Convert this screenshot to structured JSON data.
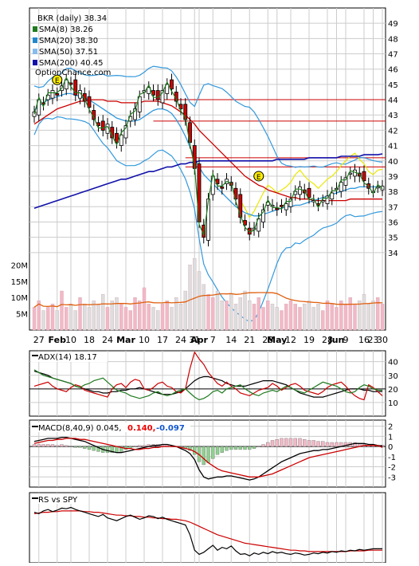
{
  "chart_data": [
    {
      "type": "line",
      "panel": "price",
      "title": "BKR (daily) 38.34",
      "watermark": "OptionChance.com",
      "legend_placement": "top-left",
      "legend": [
        {
          "label": "SMA(8) 38.26",
          "color": "#1f7a1f"
        },
        {
          "label": "SMA(20) 38.30",
          "color": "#2288cc"
        },
        {
          "label": "SMA(50) 37.51",
          "color": "#88bbee"
        },
        {
          "label": "SMA(200) 40.45",
          "color": "#1111aa"
        }
      ],
      "ylim": [
        33,
        50
      ],
      "y_ticks": [
        34,
        35,
        36,
        37,
        38,
        39,
        40,
        41,
        42,
        43,
        44,
        45,
        46,
        47,
        48,
        49
      ],
      "grid": true,
      "earnings_markers": [
        "E",
        "E"
      ],
      "candles_close": [
        43.2,
        44.0,
        43.7,
        44.3,
        44.6,
        44.3,
        44.9,
        45.3,
        45.0,
        44.3,
        44.6,
        43.9,
        43.5,
        42.7,
        42.3,
        42.0,
        42.4,
        41.5,
        41.2,
        41.7,
        42.3,
        42.9,
        43.4,
        44.2,
        44.6,
        44.8,
        44.3,
        44.0,
        44.6,
        45.0,
        44.7,
        43.9,
        43.4,
        42.7,
        41.2,
        39.5,
        36.0,
        35.0,
        37.5,
        39.0,
        38.5,
        38.2,
        38.8,
        38.4,
        37.5,
        36.3,
        35.8,
        35.2,
        35.6,
        36.2,
        36.8,
        37.3,
        37.1,
        36.8,
        37.0,
        37.2,
        37.5,
        38.0,
        38.3,
        37.9,
        37.6,
        37.4,
        37.1,
        37.4,
        37.7,
        37.9,
        38.2,
        38.6,
        38.9,
        39.2,
        39.4,
        39.0,
        38.7,
        38.2,
        38.0,
        38.3,
        38.34
      ],
      "sma20": [
        43.3,
        43.6,
        43.8,
        44.0,
        44.1,
        44.2,
        44.3,
        44.4,
        44.4,
        44.3,
        44.2,
        44.1,
        44.0,
        43.8,
        43.6,
        43.4,
        43.2,
        43.0,
        42.8,
        42.7,
        42.6,
        42.6,
        42.6,
        42.7,
        42.9,
        43.1,
        43.3,
        43.4,
        43.4,
        43.3,
        43.1,
        42.7,
        42.2,
        41.6,
        40.9,
        40.2,
        39.6,
        39.1,
        38.8,
        38.5,
        38.2,
        37.9,
        37.6,
        37.3,
        37.0,
        36.8,
        36.6,
        36.5,
        36.4,
        36.4,
        36.5,
        36.6,
        36.7,
        36.8,
        36.9,
        37.0,
        37.0,
        37.1,
        37.1,
        37.2,
        37.3,
        37.4,
        37.5,
        37.6,
        37.7,
        37.8,
        37.9,
        38.0,
        38.1,
        38.2,
        38.2,
        38.3,
        38.3,
        38.3,
        38.3,
        38.3,
        38.3
      ],
      "sma50": [
        42.4,
        42.6,
        42.8,
        43.0,
        43.2,
        43.4,
        43.5,
        43.6,
        43.7,
        43.8,
        43.9,
        43.9,
        44.0,
        44.0,
        44.0,
        44.0,
        43.9,
        43.9,
        43.9,
        43.8,
        43.8,
        43.8,
        43.8,
        43.8,
        43.9,
        43.9,
        43.9,
        43.9,
        43.8,
        43.7,
        43.6,
        43.4,
        43.2,
        43.0,
        42.7,
        42.4,
        42.0,
        41.7,
        41.4,
        41.1,
        40.8,
        40.5,
        40.2,
        39.9,
        39.6,
        39.3,
        39.0,
        38.8,
        38.6,
        38.4,
        38.3,
        38.1,
        38.0,
        37.9,
        37.8,
        37.7,
        37.6,
        37.6,
        37.5,
        37.5,
        37.5,
        37.4,
        37.4,
        37.4,
        37.4,
        37.4,
        37.4,
        37.4,
        37.4,
        37.5,
        37.5,
        37.5,
        37.5,
        37.5,
        37.5,
        37.5,
        37.5
      ],
      "sma200": [
        36.9,
        37.0,
        37.1,
        37.2,
        37.3,
        37.4,
        37.5,
        37.6,
        37.7,
        37.8,
        37.9,
        38.0,
        38.1,
        38.2,
        38.3,
        38.4,
        38.5,
        38.6,
        38.7,
        38.8,
        38.8,
        38.9,
        39.0,
        39.1,
        39.2,
        39.3,
        39.3,
        39.4,
        39.5,
        39.6,
        39.6,
        39.7,
        39.8,
        39.8,
        39.9,
        39.9,
        40.0,
        40.0,
        40.0,
        40.0,
        40.0,
        40.0,
        40.0,
        40.0,
        40.0,
        40.0,
        40.0,
        40.0,
        40.0,
        40.0,
        40.0,
        40.0,
        40.0,
        40.1,
        40.1,
        40.1,
        40.1,
        40.1,
        40.1,
        40.1,
        40.2,
        40.2,
        40.2,
        40.2,
        40.2,
        40.2,
        40.2,
        40.3,
        40.3,
        40.3,
        40.3,
        40.3,
        40.4,
        40.4,
        40.4,
        40.4,
        40.45
      ]
    },
    {
      "type": "bar",
      "panel": "volume",
      "y_ticks": [
        "5M",
        "10M",
        "15M",
        "20M"
      ],
      "ylim": [
        0,
        24
      ],
      "values": [
        7,
        9,
        6,
        7,
        8,
        6,
        12,
        7,
        8,
        6,
        10,
        8,
        7,
        9,
        8,
        11,
        7,
        9,
        10,
        8,
        7,
        6,
        10,
        9,
        13,
        8,
        7,
        6,
        8,
        9,
        7,
        10,
        8,
        12,
        20,
        22,
        18,
        14,
        11,
        10,
        12,
        9,
        9,
        11,
        8,
        10,
        12,
        9,
        8,
        10,
        7,
        9,
        8,
        7,
        6,
        8,
        9,
        8,
        7,
        8,
        9,
        7,
        8,
        6,
        9,
        8,
        7,
        9,
        8,
        10,
        8,
        9,
        11,
        8,
        9,
        10,
        8
      ]
    },
    {
      "type": "line",
      "panel": "adx",
      "title": "ADX(14) 18.17",
      "ylim": [
        0,
        48
      ],
      "y_ticks": [
        10,
        20,
        30,
        40
      ],
      "series": [
        {
          "color": "#000000",
          "values": [
            33,
            32,
            31,
            30,
            28,
            27,
            26,
            25,
            24,
            22,
            21,
            20,
            19,
            18,
            18,
            17,
            17,
            18,
            18,
            19,
            19,
            20,
            20,
            21,
            20,
            19,
            18,
            17,
            16,
            16,
            16,
            17,
            18,
            20,
            23,
            26,
            28,
            29,
            29,
            28,
            27,
            26,
            24,
            23,
            22,
            22,
            22,
            23,
            24,
            25,
            26,
            26,
            26,
            25,
            24,
            23,
            21,
            19,
            17,
            16,
            15,
            14,
            14,
            14,
            15,
            16,
            17,
            18,
            19,
            20,
            20,
            20,
            19,
            19,
            18,
            18,
            18.17
          ]
        },
        {
          "color": "#cc0000",
          "values": [
            22,
            23,
            24,
            25,
            22,
            20,
            19,
            18,
            21,
            23,
            22,
            19,
            18,
            17,
            16,
            15,
            14,
            20,
            23,
            24,
            21,
            25,
            27,
            26,
            20,
            19,
            21,
            24,
            25,
            22,
            21,
            18,
            17,
            20,
            35,
            47,
            42,
            38,
            32,
            28,
            24,
            22,
            25,
            22,
            20,
            17,
            16,
            15,
            17,
            19,
            20,
            21,
            24,
            22,
            19,
            21,
            23,
            24,
            22,
            19,
            18,
            17,
            16,
            18,
            21,
            23,
            24,
            25,
            22,
            18,
            15,
            13,
            12,
            23,
            21,
            18,
            15
          ]
        },
        {
          "color": "#1f7a1f",
          "values": [
            34,
            32,
            30,
            29,
            28,
            27,
            26,
            25,
            24,
            22,
            21,
            23,
            24,
            26,
            27,
            28,
            25,
            22,
            19,
            18,
            17,
            15,
            14,
            13,
            14,
            15,
            17,
            18,
            16,
            15,
            16,
            18,
            19,
            20,
            17,
            14,
            12,
            13,
            15,
            18,
            19,
            17,
            20,
            21,
            22,
            23,
            20,
            18,
            16,
            15,
            17,
            18,
            19,
            18,
            20,
            22,
            21,
            19,
            18,
            17,
            19,
            21,
            23,
            25,
            24,
            23,
            22,
            20,
            18,
            17,
            18,
            21,
            23,
            22,
            20,
            19,
            19
          ]
        }
      ]
    },
    {
      "type": "line",
      "panel": "macd",
      "title": "MACD(8,40,9) 0.045,",
      "value_macd": "0.140,",
      "value_signal": "-0.097",
      "ylim": [
        -4,
        2.6
      ],
      "y_ticks": [
        -3,
        -2,
        -1,
        0,
        1,
        2
      ],
      "series": [
        {
          "color": "#000000",
          "values": [
            0.5,
            0.6,
            0.7,
            0.8,
            0.8,
            0.8,
            0.9,
            0.9,
            0.8,
            0.7,
            0.6,
            0.5,
            0.3,
            0.1,
            -0.1,
            -0.3,
            -0.4,
            -0.5,
            -0.6,
            -0.6,
            -0.5,
            -0.4,
            -0.3,
            -0.2,
            -0.1,
            0.0,
            0.1,
            0.1,
            0.2,
            0.2,
            0.1,
            0.0,
            -0.2,
            -0.4,
            -0.7,
            -1.3,
            -2.3,
            -3.0,
            -3.2,
            -3.1,
            -3.0,
            -3.0,
            -2.9,
            -2.9,
            -3.0,
            -3.1,
            -3.2,
            -3.3,
            -3.2,
            -3.0,
            -2.7,
            -2.4,
            -2.1,
            -1.8,
            -1.5,
            -1.3,
            -1.1,
            -0.9,
            -0.7,
            -0.6,
            -0.5,
            -0.4,
            -0.4,
            -0.3,
            -0.3,
            -0.2,
            -0.1,
            0.0,
            0.1,
            0.2,
            0.3,
            0.3,
            0.3,
            0.2,
            0.2,
            0.1,
            0.045
          ]
        },
        {
          "color": "#cc0000",
          "values": [
            0.3,
            0.4,
            0.5,
            0.6,
            0.6,
            0.7,
            0.7,
            0.8,
            0.8,
            0.8,
            0.7,
            0.7,
            0.6,
            0.5,
            0.4,
            0.3,
            0.2,
            0.1,
            0.0,
            -0.1,
            -0.2,
            -0.2,
            -0.3,
            -0.3,
            -0.2,
            -0.2,
            -0.1,
            -0.1,
            0.0,
            0.0,
            0.0,
            0.0,
            -0.1,
            -0.2,
            -0.3,
            -0.5,
            -0.8,
            -1.2,
            -1.6,
            -1.9,
            -2.2,
            -2.4,
            -2.5,
            -2.6,
            -2.7,
            -2.8,
            -2.9,
            -3.0,
            -3.0,
            -3.0,
            -2.9,
            -2.8,
            -2.7,
            -2.5,
            -2.3,
            -2.1,
            -1.9,
            -1.7,
            -1.5,
            -1.3,
            -1.1,
            -1.0,
            -0.9,
            -0.8,
            -0.7,
            -0.6,
            -0.5,
            -0.4,
            -0.3,
            -0.2,
            -0.1,
            0.0,
            0.1,
            0.1,
            0.1,
            0.1,
            -0.097
          ]
        }
      ]
    },
    {
      "type": "line",
      "panel": "rs",
      "title": "RS vs SPY",
      "ylim": [
        0,
        100
      ],
      "series": [
        {
          "color": "#000000",
          "values": [
            72,
            70,
            74,
            76,
            73,
            75,
            78,
            77,
            79,
            76,
            74,
            72,
            70,
            68,
            66,
            69,
            64,
            62,
            60,
            63,
            66,
            68,
            65,
            62,
            64,
            67,
            66,
            63,
            65,
            62,
            60,
            58,
            56,
            54,
            40,
            18,
            12,
            15,
            20,
            25,
            18,
            22,
            20,
            24,
            17,
            12,
            13,
            10,
            14,
            12,
            15,
            13,
            16,
            14,
            15,
            13,
            12,
            14,
            13,
            11,
            12,
            14,
            13,
            15,
            14,
            16,
            15,
            17,
            16,
            18,
            17,
            19,
            18,
            19,
            20,
            20,
            20
          ]
        },
        {
          "color": "#cc0000",
          "values": [
            70,
            71,
            72,
            72,
            73,
            73,
            74,
            74,
            74,
            74,
            74,
            73,
            73,
            72,
            72,
            71,
            70,
            69,
            68,
            68,
            67,
            67,
            66,
            66,
            65,
            65,
            64,
            64,
            63,
            63,
            62,
            62,
            61,
            60,
            58,
            55,
            52,
            49,
            46,
            43,
            40,
            38,
            36,
            34,
            32,
            30,
            28,
            27,
            26,
            25,
            24,
            23,
            22,
            21,
            20,
            19,
            18,
            18,
            17,
            17,
            16,
            16,
            16,
            16,
            16,
            16,
            16,
            16,
            16,
            17,
            17,
            17,
            17,
            18,
            18,
            18,
            18
          ]
        }
      ]
    }
  ],
  "x_axis_labels": [
    "27",
    "Feb",
    "10",
    "18",
    "24",
    "Mar",
    "10",
    "17",
    "24",
    "31",
    "Apr",
    "7",
    "14",
    "21",
    "28",
    "May",
    "12",
    "19",
    "28",
    "Jun",
    "9",
    "16",
    "23",
    "30"
  ],
  "colors": {
    "up": "#ffffff",
    "down": "#cc0000",
    "fill_band": "#1f7a1f",
    "volume_up": "#f2b8c6",
    "volume_down": "#dddddd",
    "volume_avg": "#e06010",
    "hline_red": "#cc0000",
    "hline_grid": "#cccccc",
    "marker_yellow": "#ffee00",
    "macd_pos": "#f2b8c6",
    "macd_neg": "#8fd08f"
  }
}
